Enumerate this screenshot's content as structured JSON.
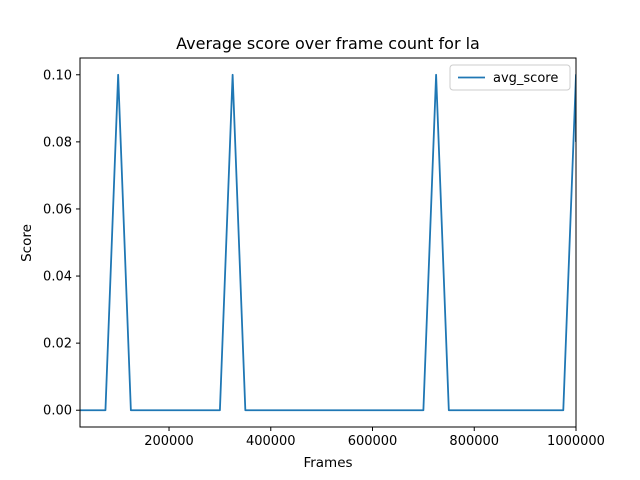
{
  "chart_data": {
    "type": "line",
    "title": "Average score over frame count for la",
    "xlabel": "Frames",
    "ylabel": "Score",
    "xlim": [
      25000,
      1000000
    ],
    "ylim": [
      -0.005,
      0.105
    ],
    "x_ticks": [
      200000,
      400000,
      600000,
      800000,
      1000000
    ],
    "x_tick_labels": [
      "200000",
      "400000",
      "600000",
      "800000",
      "1000000"
    ],
    "y_ticks": [
      0.0,
      0.02,
      0.04,
      0.06,
      0.08,
      0.1
    ],
    "y_tick_labels": [
      "0.00",
      "0.02",
      "0.04",
      "0.06",
      "0.08",
      "0.10"
    ],
    "grid": false,
    "legend_position": "top-right",
    "series": [
      {
        "name": "avg_score",
        "color": "#1f77b4",
        "x": [
          25000,
          50000,
          75000,
          100000,
          125000,
          150000,
          175000,
          200000,
          225000,
          250000,
          275000,
          300000,
          325000,
          350000,
          375000,
          400000,
          425000,
          450000,
          475000,
          500000,
          525000,
          550000,
          575000,
          600000,
          625000,
          650000,
          675000,
          700000,
          725000,
          750000,
          775000,
          800000,
          825000,
          850000,
          875000,
          900000,
          925000,
          950000,
          975000,
          1000000,
          1000000
        ],
        "y": [
          0,
          0,
          0,
          0.1,
          0,
          0,
          0,
          0,
          0,
          0,
          0,
          0,
          0.1,
          0,
          0,
          0,
          0,
          0,
          0,
          0,
          0,
          0,
          0,
          0,
          0,
          0,
          0,
          0,
          0.1,
          0,
          0,
          0,
          0,
          0,
          0,
          0,
          0,
          0,
          0,
          0.1,
          0.08
        ]
      }
    ]
  }
}
